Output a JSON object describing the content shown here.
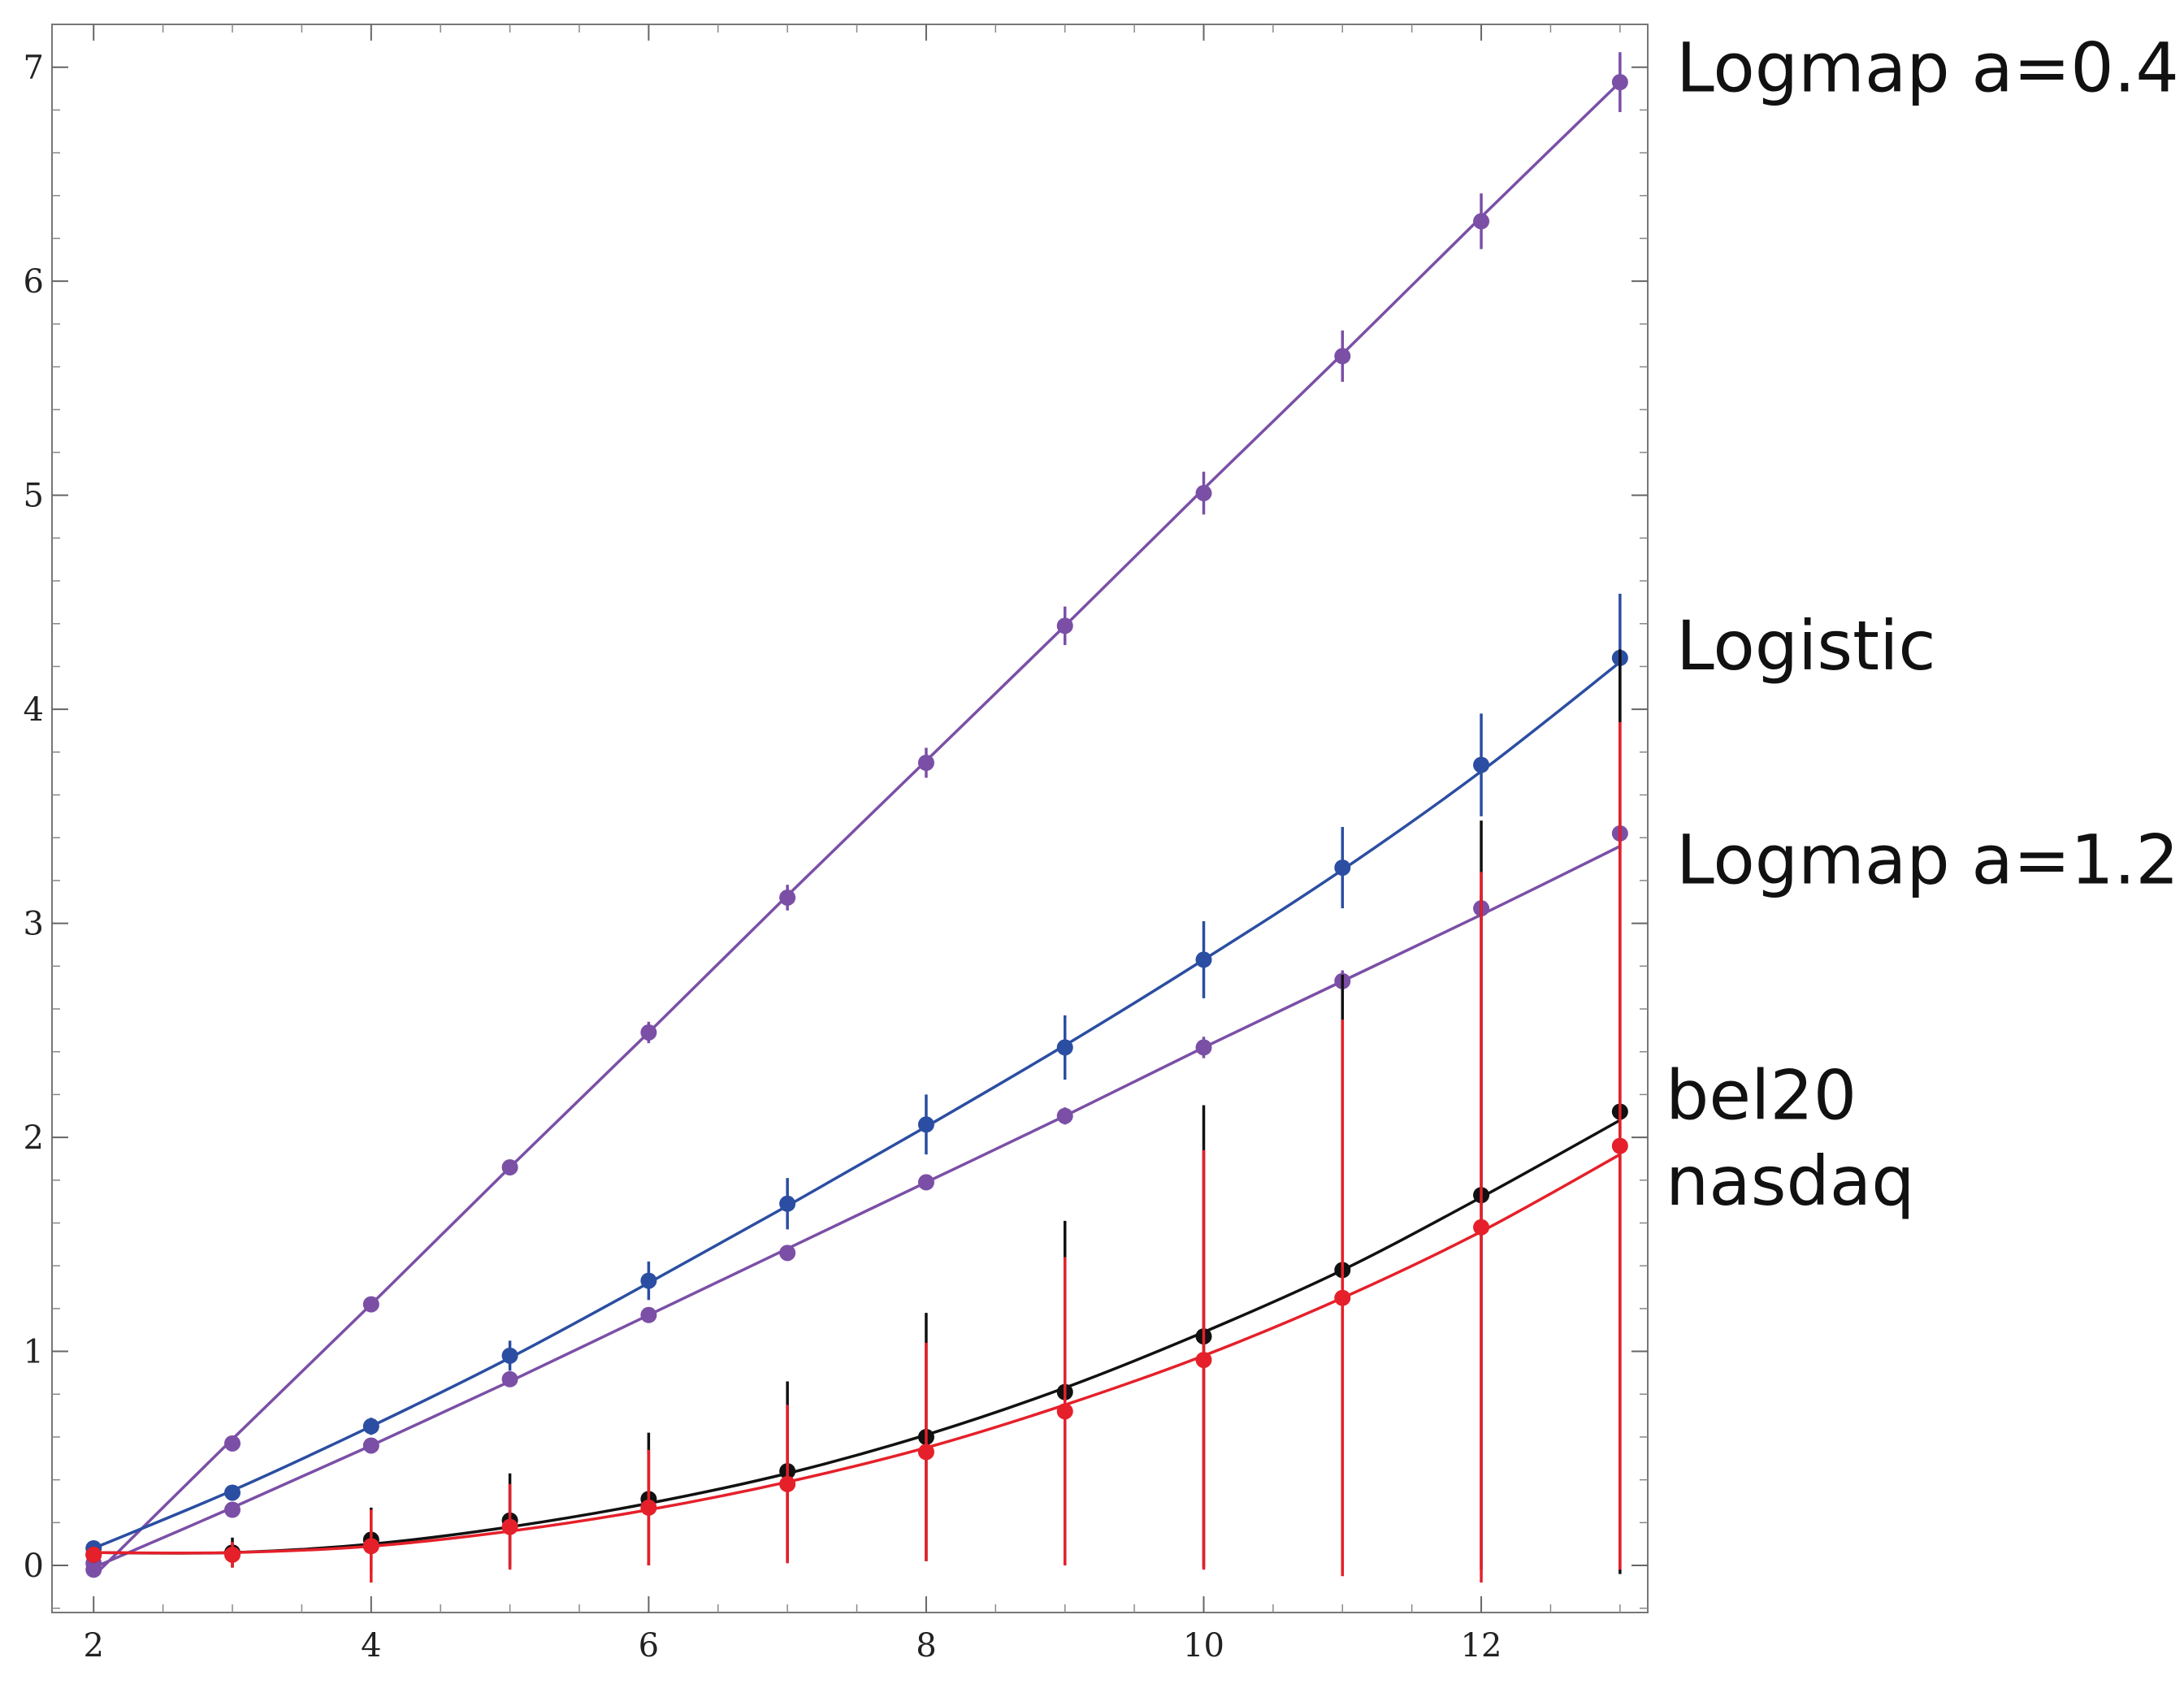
{
  "chart_data": {
    "type": "line",
    "title": "",
    "xlabel": "",
    "ylabel": "",
    "xlim": [
      1.7,
      13.2
    ],
    "ylim": [
      -0.22,
      7.2
    ],
    "x_ticks": [
      2,
      4,
      6,
      8,
      10,
      12
    ],
    "y_ticks": [
      0,
      1,
      2,
      3,
      4,
      5,
      6,
      7
    ],
    "x": [
      2,
      3,
      4,
      5,
      6,
      7,
      8,
      9,
      10,
      11,
      12,
      13
    ],
    "series": [
      {
        "name": "Logmap a=0.4",
        "color": "#7b4fa6",
        "points": [
          -0.02,
          0.57,
          1.22,
          1.86,
          2.49,
          3.12,
          3.75,
          4.39,
          5.01,
          5.65,
          6.28,
          6.93
        ],
        "err": [
          0.02,
          0.02,
          0.03,
          0.03,
          0.05,
          0.06,
          0.07,
          0.09,
          0.1,
          0.12,
          0.13,
          0.14
        ],
        "fit": [
          -0.05,
          0.59,
          1.22,
          1.86,
          2.49,
          3.13,
          3.76,
          4.39,
          5.03,
          5.66,
          6.3,
          6.93
        ]
      },
      {
        "name": "Logistic",
        "color": "#2b4ea2",
        "points": [
          0.08,
          0.34,
          0.65,
          0.98,
          1.33,
          1.69,
          2.06,
          2.42,
          2.83,
          3.26,
          3.74,
          4.24
        ],
        "err": [
          0.02,
          0.03,
          0.04,
          0.07,
          0.09,
          0.12,
          0.14,
          0.15,
          0.18,
          0.19,
          0.24,
          0.3
        ],
        "fit": [
          0.08,
          0.35,
          0.65,
          0.97,
          1.32,
          1.68,
          2.05,
          2.43,
          2.83,
          3.25,
          3.71,
          4.22
        ]
      },
      {
        "name": "Logmap a=1.2",
        "color": "#7b4fa6",
        "points": [
          0.01,
          0.26,
          0.56,
          0.87,
          1.17,
          1.46,
          1.79,
          2.1,
          2.42,
          2.73,
          3.07,
          3.42
        ],
        "err": [
          0.01,
          0.02,
          0.02,
          0.02,
          0.02,
          0.02,
          0.03,
          0.04,
          0.05,
          0.05,
          0.06,
          0.07
        ],
        "fit": [
          -0.01,
          0.27,
          0.56,
          0.86,
          1.17,
          1.48,
          1.79,
          2.1,
          2.42,
          2.73,
          3.04,
          3.36
        ]
      },
      {
        "name": "bel20",
        "color": "#111111",
        "points": [
          0.05,
          0.06,
          0.12,
          0.21,
          0.31,
          0.44,
          0.6,
          0.81,
          1.07,
          1.38,
          1.73,
          2.12
        ],
        "err": [
          0.02,
          0.07,
          0.15,
          0.22,
          0.31,
          0.42,
          0.58,
          0.8,
          1.08,
          1.38,
          1.75,
          2.16
        ],
        "fit": [
          0.06,
          0.06,
          0.1,
          0.18,
          0.29,
          0.43,
          0.61,
          0.83,
          1.09,
          1.38,
          1.72,
          2.08
        ]
      },
      {
        "name": "nasdaq",
        "color": "#e5202a",
        "points": [
          0.05,
          0.05,
          0.09,
          0.18,
          0.27,
          0.38,
          0.53,
          0.72,
          0.96,
          1.25,
          1.58,
          1.96
        ],
        "err": [
          0.02,
          0.06,
          0.17,
          0.2,
          0.27,
          0.37,
          0.51,
          0.72,
          0.98,
          1.3,
          1.66,
          1.98
        ],
        "fit": [
          0.06,
          0.06,
          0.09,
          0.16,
          0.26,
          0.39,
          0.55,
          0.75,
          0.98,
          1.25,
          1.56,
          1.92
        ]
      }
    ],
    "legend_placement": "right of plot, aligned with line ends"
  }
}
